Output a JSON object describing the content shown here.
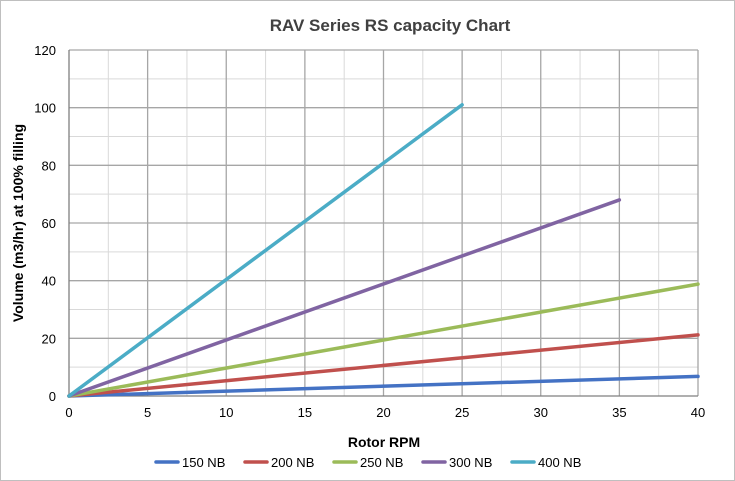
{
  "chart_data": {
    "type": "line",
    "title": "RAV Series RS capacity Chart",
    "xlabel": "Rotor RPM",
    "ylabel": "Volume (m3/hr) at 100% filling",
    "xlim": [
      0,
      40
    ],
    "ylim": [
      0,
      120
    ],
    "x_ticks": [
      0,
      5,
      10,
      15,
      20,
      25,
      30,
      35,
      40
    ],
    "y_ticks": [
      0,
      20,
      40,
      60,
      80,
      100,
      120
    ],
    "x_minor_step": 2.5,
    "y_minor_step": 10,
    "grid": true,
    "legend_position": "bottom",
    "series": [
      {
        "name": "150 NB",
        "color": "#4472C4",
        "x": [
          0,
          40
        ],
        "y": [
          0,
          6.8
        ]
      },
      {
        "name": "200 NB",
        "color": "#C0504D",
        "x": [
          0,
          40
        ],
        "y": [
          0,
          21.2
        ]
      },
      {
        "name": "250 NB",
        "color": "#9BBB59",
        "x": [
          0,
          40
        ],
        "y": [
          0,
          38.8
        ]
      },
      {
        "name": "300 NB",
        "color": "#8064A2",
        "x": [
          0,
          35
        ],
        "y": [
          0,
          68
        ]
      },
      {
        "name": "400 NB",
        "color": "#4BACC6",
        "x": [
          0,
          25
        ],
        "y": [
          0,
          101
        ]
      }
    ]
  }
}
